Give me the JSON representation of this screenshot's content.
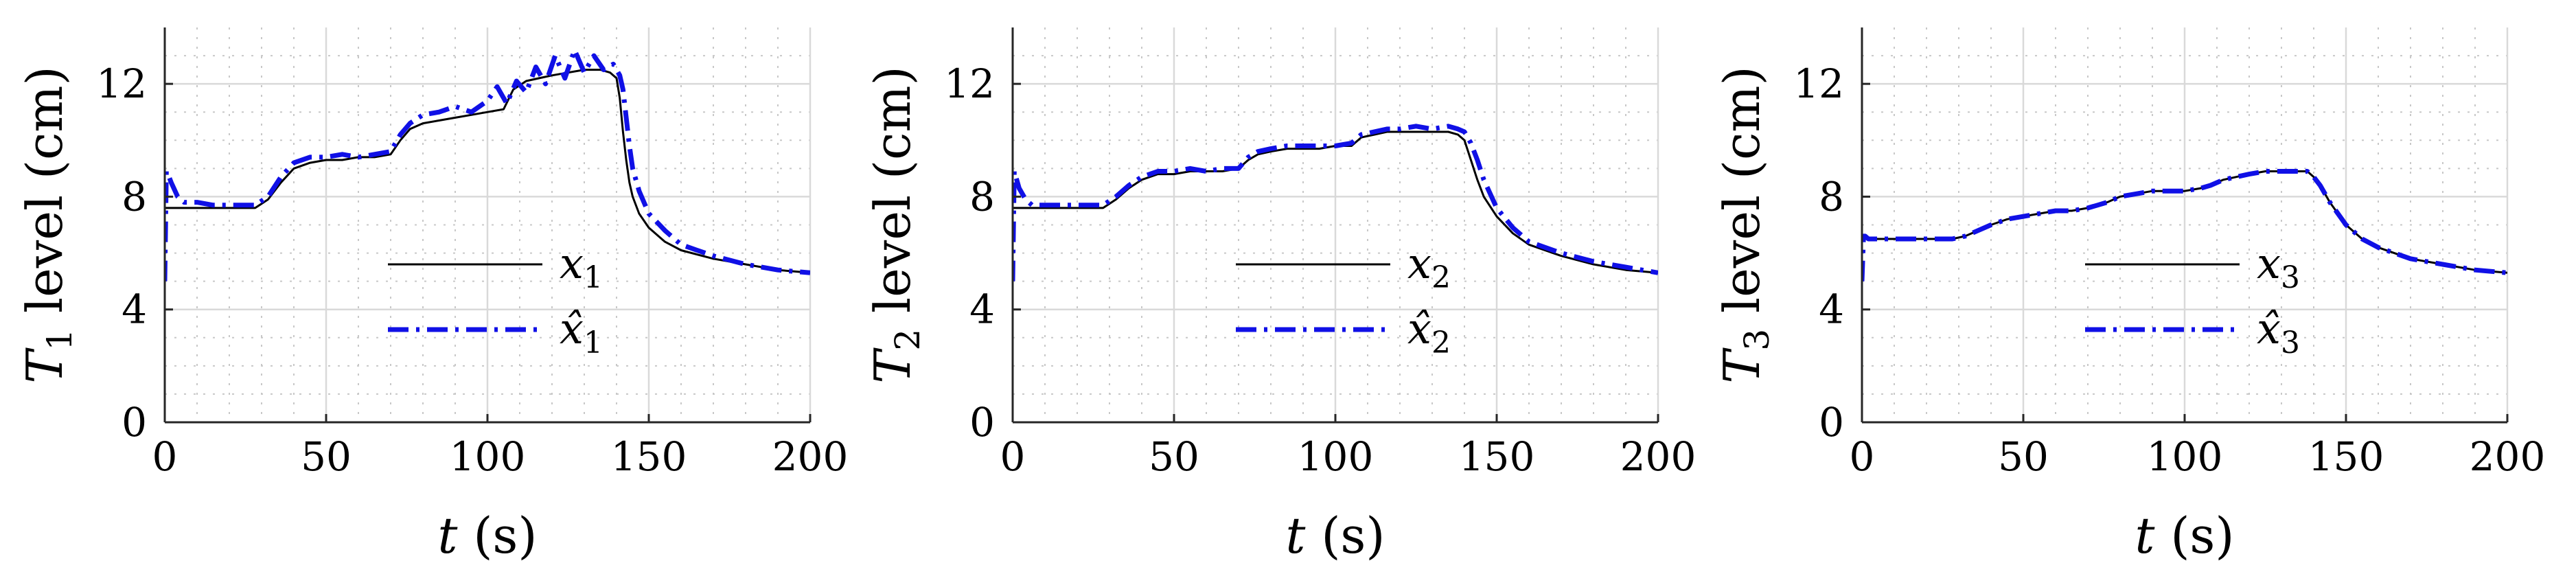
{
  "chart_data": [
    {
      "type": "line",
      "xlabel": "t (s)",
      "ylabel": "T1 level (cm)",
      "xlim": [
        0,
        200
      ],
      "ylim": [
        0,
        14
      ],
      "xticks": [
        "0",
        "50",
        "100",
        "150",
        "200"
      ],
      "yticks": [
        "0",
        "4",
        "8",
        "12"
      ],
      "grid": true,
      "minor_grid": true,
      "legend_position": "center",
      "series": [
        {
          "name": "x1",
          "color": "#000000",
          "style": "solid",
          "x": [
            0,
            10,
            20,
            28,
            32,
            36,
            40,
            45,
            50,
            55,
            60,
            65,
            70,
            73,
            76,
            80,
            85,
            90,
            95,
            100,
            105,
            108,
            112,
            116,
            120,
            125,
            130,
            135,
            138,
            140,
            141,
            142,
            143,
            144,
            145,
            147,
            150,
            155,
            160,
            170,
            180,
            190,
            200
          ],
          "y": [
            7.6,
            7.6,
            7.6,
            7.6,
            7.9,
            8.5,
            9.0,
            9.2,
            9.3,
            9.3,
            9.4,
            9.4,
            9.5,
            10.0,
            10.4,
            10.6,
            10.7,
            10.8,
            10.9,
            11.0,
            11.1,
            11.8,
            12.1,
            12.2,
            12.3,
            12.4,
            12.5,
            12.5,
            12.4,
            12.2,
            11.5,
            10.3,
            9.3,
            8.5,
            8.0,
            7.4,
            6.9,
            6.4,
            6.1,
            5.8,
            5.6,
            5.4,
            5.3
          ]
        },
        {
          "name": "x̂1",
          "color": "#1010e6",
          "style": "dashdot",
          "x": [
            0,
            0.5,
            1,
            2,
            4,
            6,
            8,
            10,
            15,
            20,
            25,
            28,
            32,
            36,
            40,
            45,
            50,
            55,
            60,
            65,
            70,
            73,
            76,
            80,
            85,
            90,
            95,
            100,
            103,
            106,
            109,
            112,
            115,
            118,
            121,
            124,
            127,
            130,
            133,
            136,
            139,
            141,
            142,
            143,
            144,
            145,
            147,
            150,
            155,
            160,
            170,
            180,
            190,
            200
          ],
          "y": [
            5.0,
            8.9,
            8.8,
            8.5,
            8.0,
            7.8,
            7.8,
            7.8,
            7.7,
            7.7,
            7.7,
            7.7,
            8.0,
            8.7,
            9.2,
            9.4,
            9.4,
            9.5,
            9.4,
            9.5,
            9.6,
            10.2,
            10.6,
            10.9,
            11.0,
            11.2,
            11.0,
            11.4,
            11.9,
            11.3,
            12.1,
            11.7,
            12.6,
            12.0,
            13.0,
            12.2,
            13.2,
            12.4,
            13.0,
            12.5,
            12.7,
            12.3,
            11.8,
            10.8,
            9.8,
            9.0,
            8.2,
            7.4,
            6.8,
            6.3,
            5.9,
            5.6,
            5.4,
            5.3
          ]
        }
      ]
    },
    {
      "type": "line",
      "xlabel": "t (s)",
      "ylabel": "T2 level (cm)",
      "xlim": [
        0,
        200
      ],
      "ylim": [
        0,
        14
      ],
      "xticks": [
        "0",
        "50",
        "100",
        "150",
        "200"
      ],
      "yticks": [
        "0",
        "4",
        "8",
        "12"
      ],
      "grid": true,
      "minor_grid": true,
      "legend_position": "center",
      "series": [
        {
          "name": "x2",
          "color": "#000000",
          "style": "solid",
          "x": [
            0,
            10,
            20,
            28,
            32,
            36,
            40,
            45,
            50,
            55,
            60,
            65,
            70,
            73,
            76,
            80,
            85,
            90,
            95,
            100,
            105,
            108,
            112,
            116,
            120,
            125,
            130,
            135,
            138,
            140,
            142,
            144,
            146,
            150,
            155,
            160,
            170,
            180,
            190,
            200
          ],
          "y": [
            7.6,
            7.6,
            7.6,
            7.6,
            7.9,
            8.3,
            8.6,
            8.8,
            8.8,
            8.9,
            8.9,
            8.9,
            9.0,
            9.3,
            9.5,
            9.6,
            9.7,
            9.7,
            9.7,
            9.8,
            9.8,
            10.1,
            10.2,
            10.3,
            10.3,
            10.3,
            10.3,
            10.3,
            10.2,
            10.0,
            9.3,
            8.6,
            8.0,
            7.3,
            6.7,
            6.3,
            5.9,
            5.6,
            5.4,
            5.3
          ]
        },
        {
          "name": "x̂2",
          "color": "#1010e6",
          "style": "dashdot",
          "x": [
            0,
            0.5,
            1,
            2,
            4,
            6,
            8,
            10,
            15,
            20,
            25,
            28,
            32,
            36,
            40,
            45,
            50,
            55,
            60,
            65,
            70,
            73,
            76,
            80,
            85,
            90,
            95,
            100,
            105,
            108,
            112,
            116,
            120,
            125,
            130,
            135,
            138,
            140,
            142,
            144,
            146,
            150,
            155,
            160,
            170,
            180,
            190,
            200
          ],
          "y": [
            5.0,
            8.9,
            8.7,
            8.3,
            7.9,
            7.7,
            7.7,
            7.7,
            7.7,
            7.7,
            7.7,
            7.7,
            8.0,
            8.4,
            8.7,
            8.9,
            8.9,
            9.0,
            8.9,
            9.0,
            9.0,
            9.4,
            9.6,
            9.7,
            9.8,
            9.8,
            9.8,
            9.8,
            9.9,
            10.2,
            10.3,
            10.4,
            10.4,
            10.5,
            10.4,
            10.5,
            10.4,
            10.3,
            9.9,
            9.3,
            8.6,
            7.6,
            6.9,
            6.4,
            6.0,
            5.7,
            5.5,
            5.3
          ]
        }
      ]
    },
    {
      "type": "line",
      "xlabel": "t (s)",
      "ylabel": "T3 level (cm)",
      "xlim": [
        0,
        200
      ],
      "ylim": [
        0,
        14
      ],
      "xticks": [
        "0",
        "50",
        "100",
        "150",
        "200"
      ],
      "yticks": [
        "0",
        "4",
        "8",
        "12"
      ],
      "grid": true,
      "minor_grid": true,
      "legend_position": "center",
      "series": [
        {
          "name": "x3",
          "color": "#000000",
          "style": "solid",
          "x": [
            0,
            10,
            20,
            28,
            32,
            36,
            40,
            45,
            50,
            55,
            60,
            65,
            70,
            73,
            76,
            80,
            85,
            90,
            95,
            100,
            105,
            108,
            112,
            116,
            120,
            125,
            130,
            135,
            138,
            140,
            142,
            145,
            150,
            155,
            160,
            170,
            180,
            190,
            200
          ],
          "y": [
            6.5,
            6.5,
            6.5,
            6.5,
            6.6,
            6.8,
            7.0,
            7.2,
            7.3,
            7.4,
            7.5,
            7.5,
            7.6,
            7.7,
            7.8,
            8.0,
            8.1,
            8.2,
            8.2,
            8.2,
            8.3,
            8.4,
            8.6,
            8.7,
            8.8,
            8.9,
            8.9,
            8.9,
            8.9,
            8.7,
            8.4,
            7.8,
            7.0,
            6.5,
            6.2,
            5.8,
            5.6,
            5.4,
            5.3
          ]
        },
        {
          "name": "x̂3",
          "color": "#1010e6",
          "style": "dashdot",
          "x": [
            0,
            0.5,
            1,
            2,
            4,
            6,
            8,
            10,
            20,
            28,
            32,
            36,
            40,
            45,
            50,
            55,
            60,
            65,
            70,
            73,
            76,
            80,
            85,
            90,
            95,
            100,
            105,
            108,
            112,
            116,
            120,
            125,
            130,
            135,
            138,
            140,
            142,
            145,
            150,
            155,
            160,
            170,
            180,
            190,
            200
          ],
          "y": [
            5.0,
            6.6,
            6.6,
            6.5,
            6.5,
            6.5,
            6.5,
            6.5,
            6.5,
            6.5,
            6.6,
            6.8,
            7.0,
            7.2,
            7.3,
            7.4,
            7.5,
            7.5,
            7.6,
            7.7,
            7.8,
            8.0,
            8.1,
            8.2,
            8.2,
            8.2,
            8.3,
            8.4,
            8.6,
            8.7,
            8.8,
            8.9,
            8.9,
            8.9,
            8.9,
            8.7,
            8.4,
            7.8,
            7.0,
            6.5,
            6.2,
            5.8,
            5.6,
            5.4,
            5.3
          ]
        }
      ]
    }
  ]
}
